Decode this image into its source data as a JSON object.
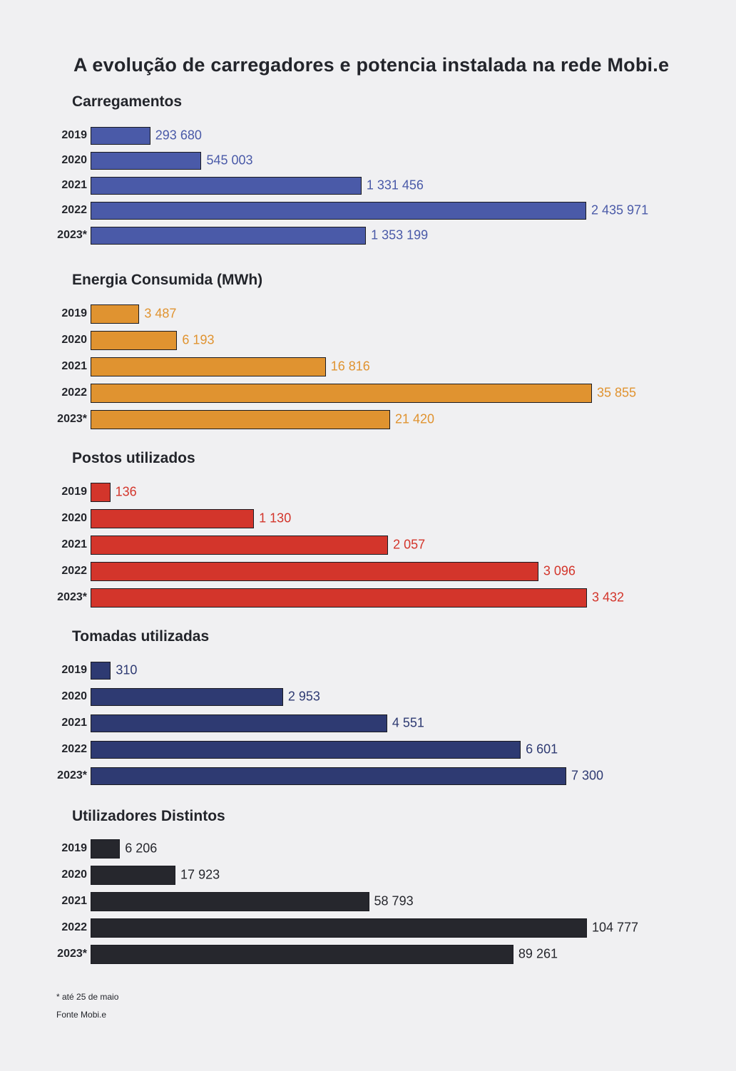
{
  "title": "A evolução de carregadores e potencia instalada na rede Mobi.e",
  "footnote": "* até 25 de maio",
  "source": "Fonte Mobi.e",
  "chart_data": [
    {
      "type": "bar",
      "orientation": "horizontal",
      "title": "Carregamentos",
      "color": "#4a5aa8",
      "categories": [
        "2019",
        "2020",
        "2021",
        "2022",
        "2023*"
      ],
      "values": [
        293680,
        545003,
        1331456,
        2435971,
        1353199
      ],
      "value_labels": [
        "293 680",
        "545 003",
        "1 331 456",
        "2 435 971",
        "1 353 199"
      ]
    },
    {
      "type": "bar",
      "orientation": "horizontal",
      "title": "Energia Consumida (MWh)",
      "color": "#e09330",
      "categories": [
        "2019",
        "2020",
        "2021",
        "2022",
        "2023*"
      ],
      "values": [
        3487,
        6193,
        16816,
        35855,
        21420
      ],
      "value_labels": [
        "3 487",
        "6 193",
        "16 816",
        "35 855",
        "21 420"
      ]
    },
    {
      "type": "bar",
      "orientation": "horizontal",
      "title": "Postos utilizados",
      "color": "#d3352b",
      "categories": [
        "2019",
        "2020",
        "2021",
        "2022",
        "2023*"
      ],
      "values": [
        136,
        1130,
        2057,
        3096,
        3432
      ],
      "value_labels": [
        "136",
        "1 130",
        "2 057",
        "3 096",
        "3 432"
      ]
    },
    {
      "type": "bar",
      "orientation": "horizontal",
      "title": "Tomadas utilizadas",
      "color": "#2e3a72",
      "categories": [
        "2019",
        "2020",
        "2021",
        "2022",
        "2023*"
      ],
      "values": [
        310,
        2953,
        4551,
        6601,
        7300
      ],
      "value_labels": [
        "310",
        "2 953",
        "4 551",
        "6 601",
        "7 300"
      ]
    },
    {
      "type": "bar",
      "orientation": "horizontal",
      "title": "Utilizadores Distintos",
      "color": "#26272d",
      "label_color": "#26272d",
      "categories": [
        "2019",
        "2020",
        "2021",
        "2022",
        "2023*"
      ],
      "values": [
        6206,
        17923,
        58793,
        104777,
        89261
      ],
      "value_labels": [
        "6 206",
        "17 923",
        "58 793",
        "104 777",
        "89 261"
      ]
    }
  ]
}
